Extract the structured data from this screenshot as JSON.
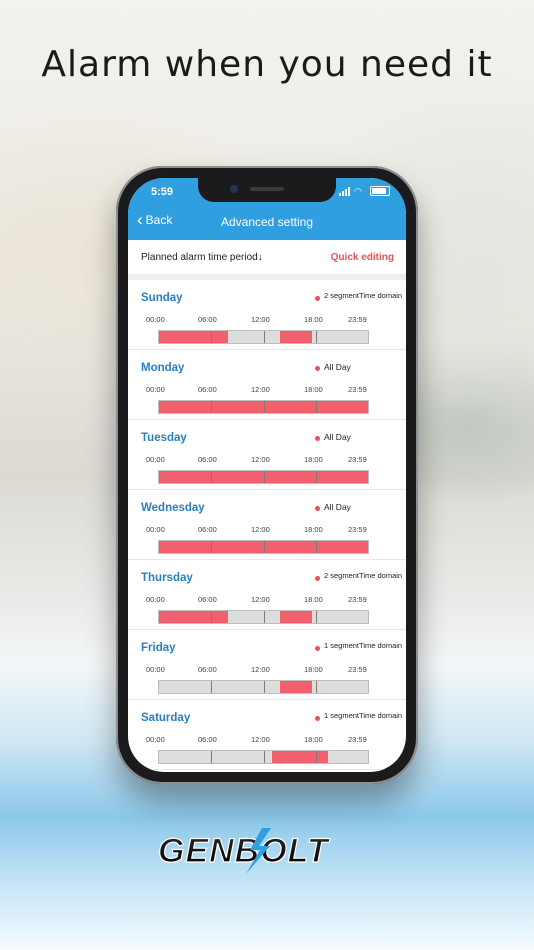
{
  "headline": "Alarm when you need it",
  "status_bar": {
    "time": "5:59"
  },
  "nav": {
    "back_label": "Back",
    "title": "Advanced setting"
  },
  "plan": {
    "label": "Planned alarm time period↓",
    "quick_edit": "Quick editing"
  },
  "tick_labels": [
    "00:00",
    "06:00",
    "12:00",
    "18:00",
    "23:59"
  ],
  "days": [
    {
      "name": "Sunday",
      "summary": "2 segmentTime domain",
      "segments": [
        [
          0,
          0.33
        ],
        [
          0.58,
          0.73
        ]
      ]
    },
    {
      "name": "Monday",
      "summary": "All Day",
      "segments": [
        [
          0,
          1
        ]
      ]
    },
    {
      "name": "Tuesday",
      "summary": "All Day",
      "segments": [
        [
          0,
          1
        ]
      ]
    },
    {
      "name": "Wednesday",
      "summary": "All Day",
      "segments": [
        [
          0,
          1
        ]
      ]
    },
    {
      "name": "Thursday",
      "summary": "2 segmentTime domain",
      "segments": [
        [
          0,
          0.33
        ],
        [
          0.58,
          0.73
        ]
      ]
    },
    {
      "name": "Friday",
      "summary": "1 segmentTime domain",
      "segments": [
        [
          0.58,
          0.73
        ]
      ]
    },
    {
      "name": "Saturday",
      "summary": "1 segmentTime domain",
      "segments": [
        [
          0.54,
          0.81
        ]
      ]
    }
  ],
  "brand": {
    "logo_text": "GENBOLT",
    "accent": "#2f9fe0",
    "alarm_color": "#f25f6d"
  }
}
